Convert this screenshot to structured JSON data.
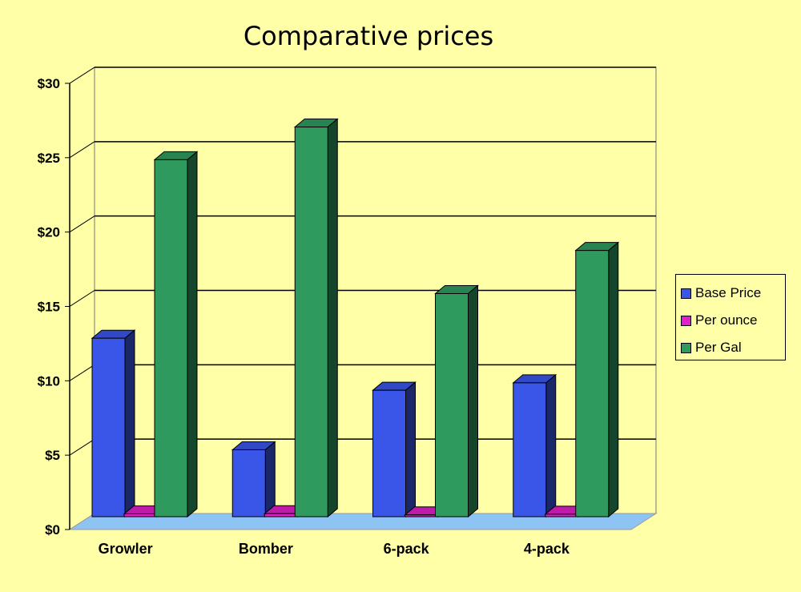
{
  "chart_data": {
    "type": "bar",
    "title": "Comparative prices",
    "categories": [
      "Growler",
      "Bomber",
      "6-pack",
      "4-pack"
    ],
    "series": [
      {
        "name": "Base Price",
        "values": [
          12,
          4.5,
          8.5,
          9
        ],
        "color": "#3A56E8"
      },
      {
        "name": "Per ounce",
        "values": [
          0.19,
          0.2,
          0.12,
          0.17
        ],
        "color": "#E020C8"
      },
      {
        "name": "Per Gal",
        "values": [
          24,
          26.2,
          15,
          17.9
        ],
        "color": "#2E9A5E"
      }
    ],
    "yticks": [
      "$0",
      "$5",
      "$10",
      "$15",
      "$20",
      "$25",
      "$30"
    ],
    "ylim": [
      0,
      30
    ],
    "xlabel": "",
    "ylabel": "",
    "grid": true,
    "legend_position": "right",
    "floor_color": "#8EC4F4",
    "background_color": "#FFFFA8"
  }
}
